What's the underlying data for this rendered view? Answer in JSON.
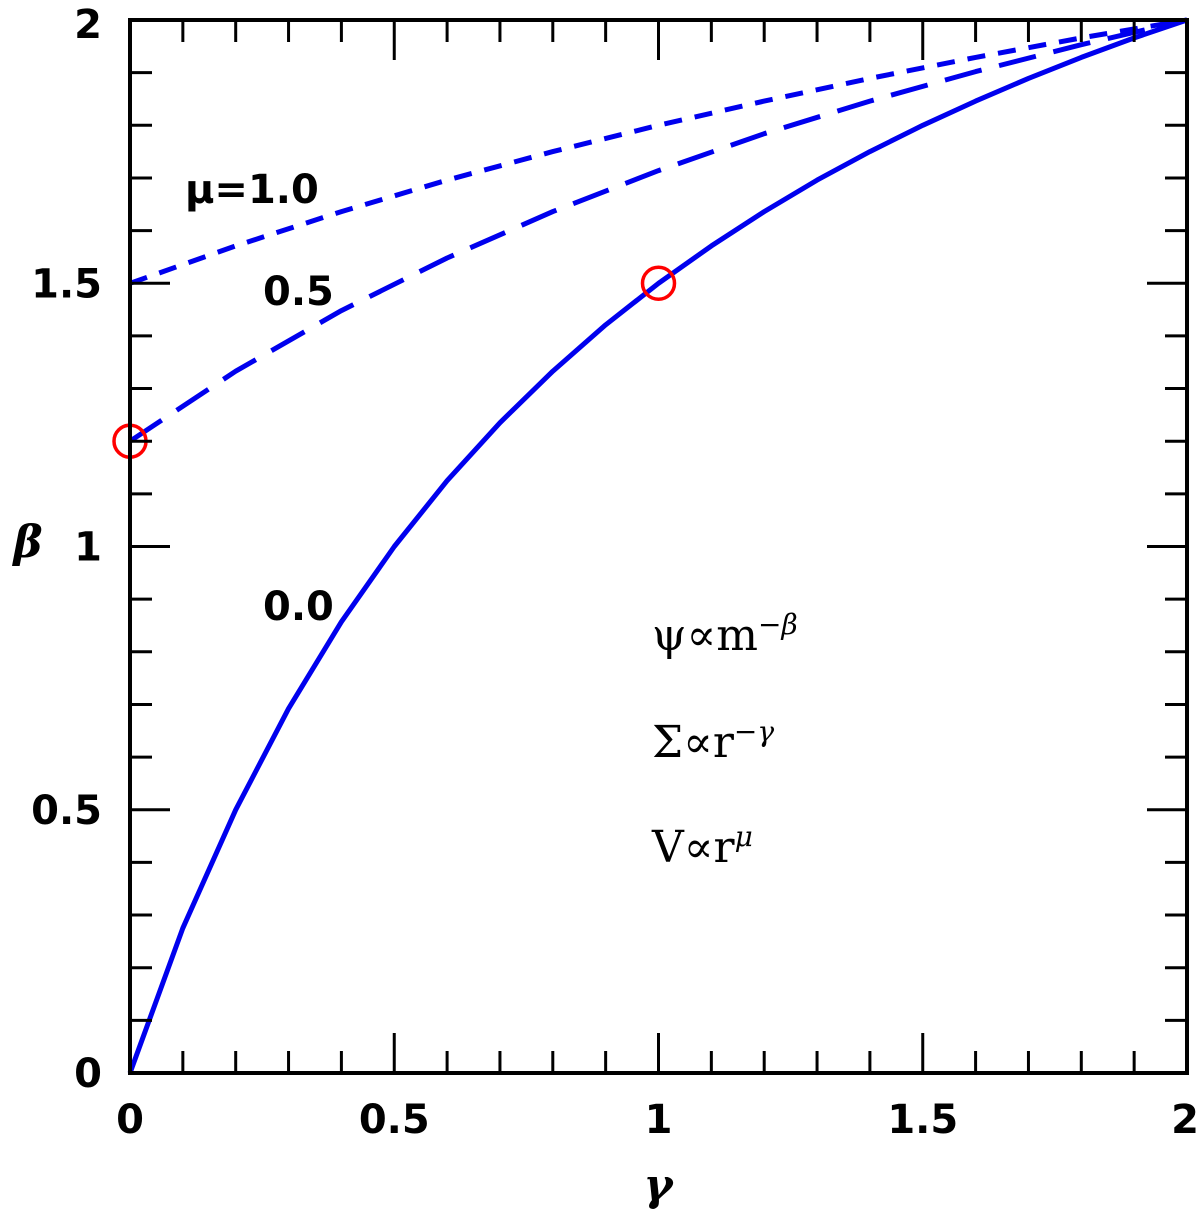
{
  "chart_data": {
    "type": "line",
    "xlabel": "γ",
    "ylabel": "β",
    "xlim": [
      0,
      2
    ],
    "ylim": [
      0,
      2
    ],
    "x_ticks": [
      "0",
      "0.5",
      "1",
      "1.5",
      "2"
    ],
    "y_ticks": [
      "0",
      "0.5",
      "1",
      "1.5",
      "2"
    ],
    "grid": false,
    "colors": {
      "lines": "#0000ee",
      "markers": "#ff0000",
      "axes": "#000000"
    },
    "series": [
      {
        "label": "μ=1.0",
        "style": "short-dash",
        "x": [
          0,
          0.2,
          0.4,
          0.6,
          0.8,
          1.0,
          1.2,
          1.4,
          1.6,
          1.8,
          2.0
        ],
        "y": [
          1.5,
          1.571,
          1.636,
          1.696,
          1.75,
          1.8,
          1.846,
          1.889,
          1.929,
          1.966,
          2.0
        ]
      },
      {
        "label": "0.5",
        "style": "long-dash",
        "x": [
          0,
          0.2,
          0.4,
          0.6,
          0.8,
          1.0,
          1.2,
          1.4,
          1.6,
          1.8,
          2.0
        ],
        "y": [
          1.2,
          1.333,
          1.448,
          1.548,
          1.636,
          1.714,
          1.784,
          1.846,
          1.902,
          1.953,
          2.0
        ]
      },
      {
        "label": "0.0",
        "style": "solid",
        "x": [
          0,
          0.1,
          0.2,
          0.3,
          0.4,
          0.5,
          0.6,
          0.7,
          0.8,
          0.9,
          1.0,
          1.1,
          1.2,
          1.3,
          1.4,
          1.5,
          1.6,
          1.7,
          1.8,
          1.9,
          2.0
        ],
        "y": [
          0,
          0.275,
          0.5,
          0.692,
          0.857,
          1.0,
          1.125,
          1.235,
          1.333,
          1.421,
          1.5,
          1.571,
          1.636,
          1.696,
          1.75,
          1.8,
          1.846,
          1.889,
          1.929,
          1.966,
          2.0
        ]
      }
    ],
    "markers": [
      {
        "x": 0,
        "y": 1.2
      },
      {
        "x": 1,
        "y": 1.5
      }
    ],
    "annotations": [
      {
        "text": "μ=1.0",
        "x": 0.1,
        "y": 1.67
      },
      {
        "text": "0.5",
        "x": 0.25,
        "y": 1.47
      },
      {
        "text": "0.0",
        "x": 0.25,
        "y": 0.88
      }
    ],
    "legend": {
      "lines": [
        {
          "base": "ψ∝m",
          "sup": "−β"
        },
        {
          "base": "Σ∝r",
          "sup": "−γ"
        },
        {
          "base": "V∝r",
          "sup": "μ"
        }
      ]
    }
  }
}
